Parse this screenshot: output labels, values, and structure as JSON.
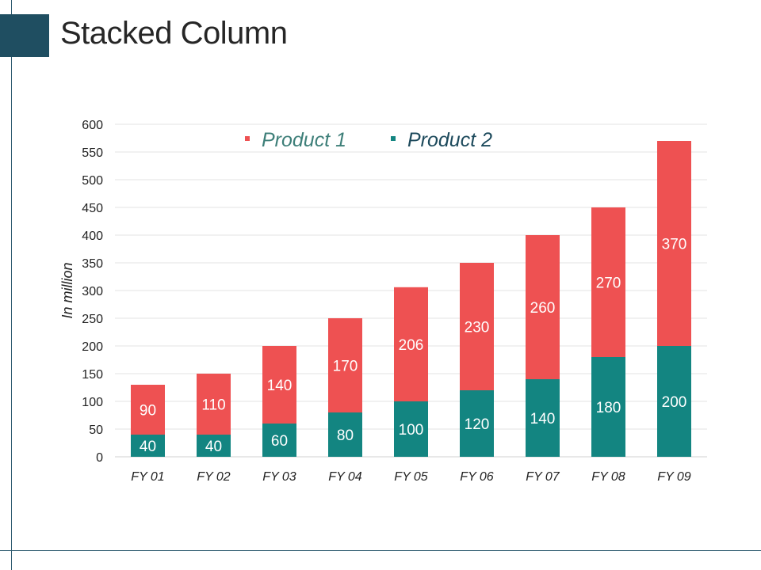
{
  "page": {
    "title": "Stacked Column"
  },
  "chart_data": {
    "type": "bar",
    "stacked": true,
    "title": "",
    "xlabel": "",
    "ylabel": "In million",
    "ylim": [
      0,
      600
    ],
    "yticks": [
      0,
      50,
      100,
      150,
      200,
      250,
      300,
      350,
      400,
      450,
      500,
      550,
      600
    ],
    "grid": true,
    "legend_position": "top",
    "categories": [
      "FY 01",
      "FY 02",
      "FY 03",
      "FY 04",
      "FY 05",
      "FY 06",
      "FY 07",
      "FY 08",
      "FY 09"
    ],
    "series": [
      {
        "name": "Product 1",
        "values": [
          90,
          110,
          140,
          170,
          206,
          230,
          260,
          270,
          370
        ],
        "color": "#ee5152",
        "legend_text_color": "#3e7f79"
      },
      {
        "name": "Product 2",
        "values": [
          40,
          40,
          60,
          80,
          100,
          120,
          140,
          180,
          200
        ],
        "color": "#138581",
        "legend_text_color": "#1d4a5c"
      }
    ]
  }
}
